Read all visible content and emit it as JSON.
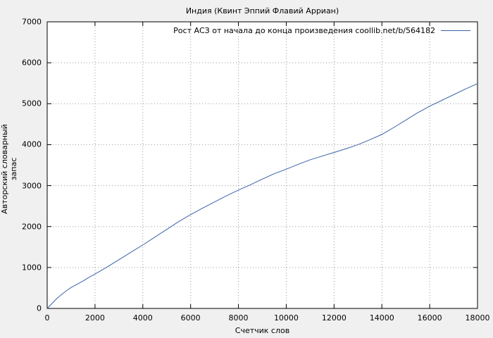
{
  "figure": {
    "title": "Индия (Квинт Эппий Флавий Арриан)",
    "xlabel": "Счетчик слов",
    "ylabel": "Авторский словарный запас",
    "legend_label": "Рост АСЗ от начала до конца произведения coollib.net/b/564182"
  },
  "colors": {
    "line": "#3a62a8",
    "grid": "#9a9a9a",
    "axis": "#000000",
    "plot_bg": "#ffffff",
    "figure_bg": "#f0f0f0"
  },
  "chart_data": {
    "type": "line",
    "title": "Индия (Квинт Эппий Флавий Арриан)",
    "xlabel": "Счетчик слов",
    "ylabel": "Авторский словарный запас",
    "xlim": [
      0,
      18000
    ],
    "ylim": [
      0,
      7000
    ],
    "xticks": [
      0,
      2000,
      4000,
      6000,
      8000,
      10000,
      12000,
      14000,
      16000,
      18000
    ],
    "yticks": [
      0,
      1000,
      2000,
      3000,
      4000,
      5000,
      6000,
      7000
    ],
    "grid": true,
    "grid_style": "dotted",
    "legend_position": "top-right-inside",
    "series": [
      {
        "name": "Рост АСЗ от начала до конца произведения coollib.net/b/564182",
        "color": "#3a62a8",
        "x": [
          0,
          200,
          400,
          600,
          800,
          1000,
          1250,
          1500,
          1750,
          2000,
          2500,
          3000,
          3500,
          4000,
          4500,
          5000,
          5500,
          6000,
          6500,
          7000,
          7500,
          8000,
          8500,
          9000,
          9500,
          10000,
          10500,
          11000,
          11500,
          12000,
          12500,
          13000,
          13500,
          14000,
          14500,
          15000,
          15500,
          16000,
          16500,
          17000,
          17500,
          18000
        ],
        "y": [
          0,
          120,
          240,
          340,
          430,
          510,
          590,
          670,
          760,
          840,
          1010,
          1190,
          1370,
          1550,
          1740,
          1930,
          2120,
          2290,
          2450,
          2600,
          2750,
          2890,
          3020,
          3160,
          3290,
          3400,
          3520,
          3630,
          3720,
          3810,
          3900,
          4000,
          4120,
          4250,
          4420,
          4600,
          4780,
          4940,
          5080,
          5220,
          5360,
          5490
        ]
      }
    ]
  }
}
